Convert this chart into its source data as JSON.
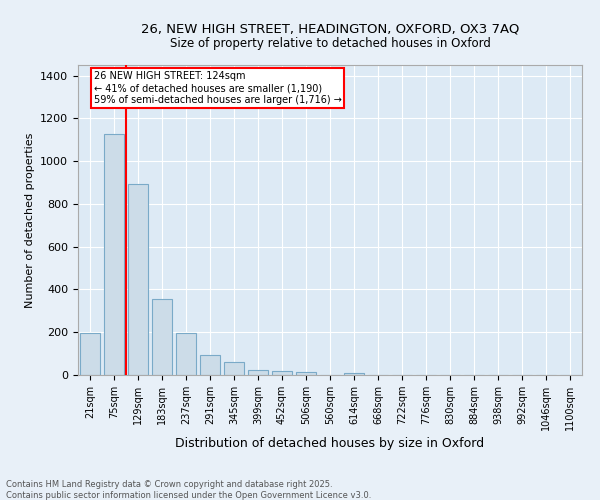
{
  "title_line1": "26, NEW HIGH STREET, HEADINGTON, OXFORD, OX3 7AQ",
  "title_line2": "Size of property relative to detached houses in Oxford",
  "xlabel": "Distribution of detached houses by size in Oxford",
  "ylabel": "Number of detached properties",
  "categories": [
    "21sqm",
    "75sqm",
    "129sqm",
    "183sqm",
    "237sqm",
    "291sqm",
    "345sqm",
    "399sqm",
    "452sqm",
    "506sqm",
    "560sqm",
    "614sqm",
    "668sqm",
    "722sqm",
    "776sqm",
    "830sqm",
    "884sqm",
    "938sqm",
    "992sqm",
    "1046sqm",
    "1100sqm"
  ],
  "values": [
    197,
    1127,
    895,
    355,
    197,
    92,
    60,
    25,
    18,
    12,
    0,
    10,
    0,
    0,
    0,
    0,
    0,
    0,
    0,
    0,
    0
  ],
  "bar_color": "#ccdce8",
  "bar_edge_color": "#7aaac8",
  "subject_label": "26 NEW HIGH STREET: 124sqm",
  "annotation_line2": "← 41% of detached houses are smaller (1,190)",
  "annotation_line3": "59% of semi-detached houses are larger (1,716) →",
  "red_line_x": 1.5,
  "ylim": [
    0,
    1450
  ],
  "yticks": [
    0,
    200,
    400,
    600,
    800,
    1000,
    1200,
    1400
  ],
  "ax_background_color": "#ddeaf5",
  "fig_background_color": "#e8f0f8",
  "footer_line1": "Contains HM Land Registry data © Crown copyright and database right 2025.",
  "footer_line2": "Contains public sector information licensed under the Open Government Licence v3.0."
}
